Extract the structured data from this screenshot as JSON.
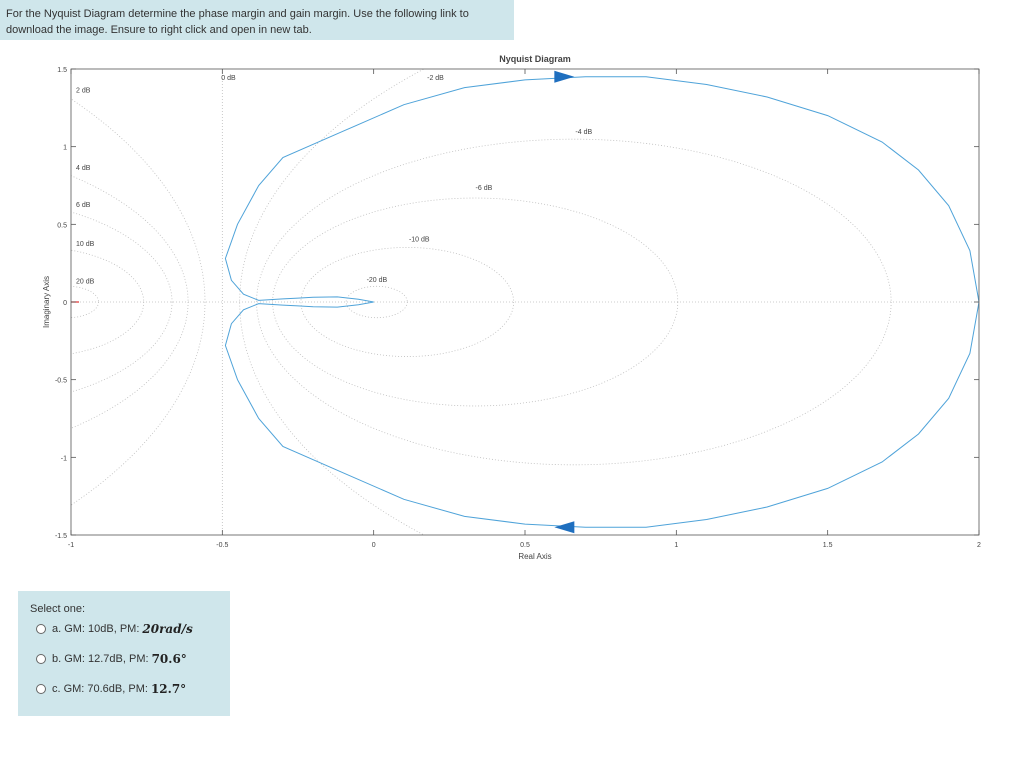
{
  "question": {
    "line1": "For the Nyquist Diagram determine the phase margin and gain margin. Use the following link to",
    "line2": "download the image. Ensure to right click and open in new tab."
  },
  "answers": {
    "select_label": "Select one:",
    "options": [
      {
        "letter": "a.",
        "text": "GM: 10dB, PM:",
        "math": "20rad/s",
        "selected": false
      },
      {
        "letter": "b.",
        "text": "GM: 12.7dB, PM:",
        "math": "70.6°",
        "selected": false
      },
      {
        "letter": "c.",
        "text": "GM: 70.6dB, PM:",
        "math": "12.7°",
        "selected": false
      }
    ]
  },
  "chart_data": {
    "type": "line",
    "title": "Nyquist Diagram",
    "xlabel": "Real Axis",
    "ylabel": "Imaginary Axis",
    "xlim": [
      -1,
      2
    ],
    "ylim": [
      -1.5,
      1.5
    ],
    "xticks": [
      "-1",
      "-0.5",
      "0",
      "0.5",
      "1",
      "1.5",
      "2"
    ],
    "yticks": [
      "1.5",
      "1",
      "0.5",
      "0",
      "-0.5",
      "-1",
      "-1.5"
    ],
    "grid": "M-circles (dotted)",
    "grid_labels": [
      {
        "text": "0 dB",
        "x": -0.51,
        "y": 1.43
      },
      {
        "text": "-2 dB",
        "x": 0.17,
        "y": 1.43
      },
      {
        "text": "-4 dB",
        "x": 0.66,
        "y": 1.08
      },
      {
        "text": "-6 dB",
        "x": 0.33,
        "y": 0.72
      },
      {
        "text": "-10 dB",
        "x": 0.11,
        "y": 0.39
      },
      {
        "text": "-20 dB",
        "x": -0.03,
        "y": 0.13
      },
      {
        "text": "2 dB",
        "x": -0.99,
        "y": 1.35
      },
      {
        "text": "4 dB",
        "x": -0.99,
        "y": 0.85
      },
      {
        "text": "6 dB",
        "x": -0.99,
        "y": 0.61
      },
      {
        "text": "10 dB",
        "x": -0.99,
        "y": 0.36
      },
      {
        "text": "20 dB",
        "x": -0.99,
        "y": 0.12
      }
    ],
    "series": [
      {
        "color": "#4fa3d9",
        "x": [
          2.0,
          1.97,
          1.9,
          1.8,
          1.68,
          1.5,
          1.3,
          1.1,
          0.9,
          0.7,
          0.5,
          0.3,
          0.1,
          -0.1,
          -0.3,
          -0.38,
          -0.45,
          -0.49,
          -0.47,
          -0.43,
          -0.38,
          -0.3,
          -0.25,
          -0.2,
          -0.12,
          -0.05,
          0.0,
          -0.05,
          -0.12,
          -0.2,
          -0.25,
          -0.3,
          -0.38,
          -0.43,
          -0.47,
          -0.49,
          -0.45,
          -0.38,
          -0.3,
          -0.1,
          0.1,
          0.3,
          0.5,
          0.7,
          0.9,
          1.1,
          1.3,
          1.5,
          1.68,
          1.8,
          1.9,
          1.97,
          2.0
        ],
        "y": [
          0.0,
          0.33,
          0.62,
          0.85,
          1.03,
          1.2,
          1.32,
          1.4,
          1.45,
          1.45,
          1.43,
          1.38,
          1.27,
          1.1,
          0.93,
          0.75,
          0.5,
          0.28,
          0.14,
          0.05,
          0.01,
          0.02,
          0.025,
          0.03,
          0.033,
          0.018,
          0.0,
          -0.018,
          -0.033,
          -0.03,
          -0.025,
          -0.02,
          -0.01,
          -0.05,
          -0.14,
          -0.28,
          -0.5,
          -0.75,
          -0.93,
          -1.1,
          -1.27,
          -1.38,
          -1.43,
          -1.45,
          -1.45,
          -1.4,
          -1.32,
          -1.2,
          -1.03,
          -0.85,
          -0.62,
          -0.33,
          0.0
        ]
      }
    ]
  }
}
